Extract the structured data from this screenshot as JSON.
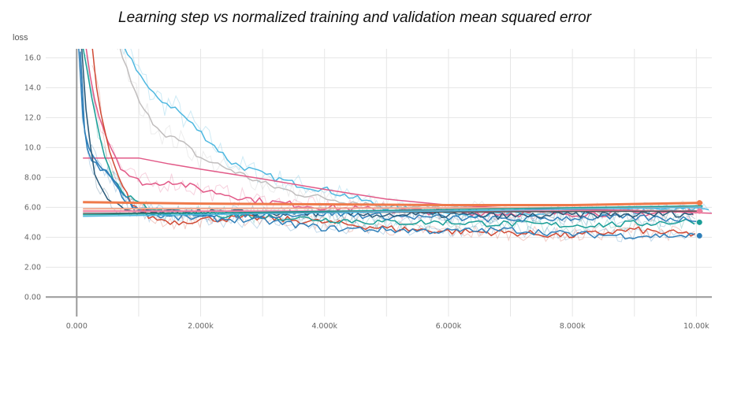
{
  "chart_data": {
    "type": "line",
    "title": "Learning step vs normalized training and validation mean squared error",
    "ylabel": "loss",
    "xlabel": "",
    "xlim": [
      -500,
      10250
    ],
    "ylim": [
      -1.3,
      16.6
    ],
    "x_ticks": [
      0,
      2000,
      4000,
      6000,
      8000,
      10000
    ],
    "x_tick_labels": [
      "0.000",
      "2.000k",
      "4.000k",
      "6.000k",
      "8.000k",
      "10.00k"
    ],
    "y_ticks": [
      0,
      2,
      4,
      6,
      8,
      10,
      12,
      14,
      16
    ],
    "y_tick_labels": [
      "0.00",
      "2.00",
      "4.00",
      "6.00",
      "8.00",
      "10.0",
      "12.0",
      "14.0",
      "16.0"
    ],
    "grid": true,
    "series": [
      {
        "color": "#4fb8e0",
        "smooth": true,
        "points": [
          [
            400,
            18
          ],
          [
            800,
            16.5
          ],
          [
            1200,
            13.6
          ],
          [
            1600,
            12.6
          ],
          [
            2000,
            11.0
          ],
          [
            2500,
            9.0
          ],
          [
            3000,
            8.2
          ],
          [
            3500,
            7.6
          ],
          [
            4000,
            7.2
          ],
          [
            5000,
            6.0
          ],
          [
            6000,
            5.6
          ],
          [
            7000,
            5.5
          ],
          [
            8000,
            5.6
          ],
          [
            9000,
            5.7
          ],
          [
            10000,
            5.9
          ],
          [
            10250,
            6.0
          ]
        ]
      },
      {
        "color": "#c0bdbd",
        "smooth": true,
        "points": [
          [
            600,
            18
          ],
          [
            900,
            14
          ],
          [
            1100,
            12.3
          ],
          [
            1400,
            11.0
          ],
          [
            1700,
            10.3
          ],
          [
            2000,
            9.3
          ],
          [
            2500,
            8.5
          ],
          [
            3000,
            7.6
          ],
          [
            3500,
            7.0
          ],
          [
            4000,
            6.6
          ],
          [
            5000,
            6.1
          ],
          [
            6000,
            5.9
          ],
          [
            7000,
            5.8
          ],
          [
            8000,
            5.7
          ],
          [
            9000,
            5.8
          ],
          [
            10000,
            5.9
          ]
        ]
      },
      {
        "color": "#e25a88",
        "smooth": false,
        "points": [
          [
            100,
            9.3
          ],
          [
            1000,
            9.3
          ],
          [
            1500,
            8.9
          ],
          [
            2000,
            8.55
          ],
          [
            3000,
            7.9
          ],
          [
            4000,
            7.2
          ],
          [
            5000,
            6.55
          ],
          [
            6000,
            6.15
          ],
          [
            7000,
            5.95
          ],
          [
            8000,
            5.85
          ],
          [
            9000,
            5.8
          ],
          [
            10250,
            5.6
          ]
        ]
      },
      {
        "color": "#e25a88",
        "smooth": true,
        "points": [
          [
            150,
            16.6
          ],
          [
            300,
            13
          ],
          [
            500,
            10.5
          ],
          [
            700,
            8.8
          ],
          [
            900,
            7.9
          ],
          [
            1200,
            7.5
          ],
          [
            1500,
            7.8
          ],
          [
            2000,
            7.2
          ],
          [
            2500,
            6.8
          ],
          [
            3000,
            6.4
          ],
          [
            4000,
            6.0
          ],
          [
            5000,
            5.8
          ],
          [
            6000,
            5.7
          ],
          [
            7000,
            5.6
          ],
          [
            8000,
            5.6
          ],
          [
            9000,
            5.6
          ],
          [
            10000,
            5.7
          ]
        ]
      },
      {
        "color": "#d04a35",
        "smooth": true,
        "points": [
          [
            250,
            16.6
          ],
          [
            350,
            13
          ],
          [
            500,
            10
          ],
          [
            700,
            7.6
          ],
          [
            900,
            6.2
          ],
          [
            1200,
            5.3
          ],
          [
            1600,
            5.0
          ],
          [
            2000,
            5.2
          ],
          [
            3000,
            5.3
          ],
          [
            4000,
            5.0
          ],
          [
            5000,
            4.6
          ],
          [
            6000,
            4.4
          ],
          [
            7000,
            4.3
          ],
          [
            8000,
            4.1
          ],
          [
            8500,
            4.3
          ],
          [
            9000,
            4.5
          ],
          [
            9500,
            4.3
          ],
          [
            10000,
            4.2
          ]
        ]
      },
      {
        "color": "#1a9e97",
        "smooth": true,
        "points": [
          [
            100,
            16.6
          ],
          [
            250,
            13
          ],
          [
            400,
            10
          ],
          [
            600,
            7.9
          ],
          [
            900,
            6.4
          ],
          [
            1200,
            5.8
          ],
          [
            1600,
            5.6
          ],
          [
            2000,
            5.6
          ],
          [
            3000,
            5.4
          ],
          [
            4000,
            5.2
          ],
          [
            5000,
            5.0
          ],
          [
            6000,
            5.0
          ],
          [
            7000,
            4.9
          ],
          [
            8000,
            4.8
          ],
          [
            9000,
            4.9
          ],
          [
            10000,
            5.1
          ]
        ]
      },
      {
        "color": "#2f7fb9",
        "smooth": true,
        "points": [
          [
            30,
            16.6
          ],
          [
            100,
            12
          ],
          [
            200,
            9.3
          ],
          [
            350,
            8.6
          ],
          [
            500,
            8.5
          ],
          [
            700,
            7.0
          ],
          [
            900,
            6.0
          ],
          [
            1200,
            5.5
          ],
          [
            1600,
            5.3
          ],
          [
            2000,
            5.3
          ],
          [
            3000,
            5.1
          ],
          [
            4000,
            4.6
          ],
          [
            5000,
            4.5
          ],
          [
            6000,
            4.4
          ],
          [
            7000,
            4.5
          ],
          [
            8000,
            4.2
          ],
          [
            9000,
            4.1
          ],
          [
            10000,
            4.1
          ]
        ]
      },
      {
        "color": "#2f7fb9",
        "smooth": true,
        "points": [
          [
            60,
            16.6
          ],
          [
            130,
            11
          ],
          [
            250,
            9.5
          ],
          [
            450,
            8.6
          ],
          [
            650,
            7.5
          ],
          [
            900,
            6.0
          ],
          [
            1300,
            5.6
          ],
          [
            2000,
            5.6
          ],
          [
            3000,
            5.5
          ],
          [
            4000,
            5.6
          ],
          [
            5000,
            5.4
          ],
          [
            6000,
            5.3
          ],
          [
            7000,
            5.2
          ],
          [
            8000,
            5.3
          ],
          [
            9000,
            5.3
          ],
          [
            10000,
            5.2
          ]
        ]
      },
      {
        "color": "#2a5a7a",
        "smooth": true,
        "points": [
          [
            80,
            16.6
          ],
          [
            180,
            11
          ],
          [
            300,
            8.0
          ],
          [
            500,
            6.4
          ],
          [
            800,
            5.8
          ],
          [
            1200,
            5.6
          ],
          [
            2000,
            5.7
          ],
          [
            3000,
            5.6
          ],
          [
            4000,
            5.6
          ],
          [
            5000,
            5.5
          ],
          [
            6000,
            5.5
          ],
          [
            7000,
            5.4
          ],
          [
            8000,
            5.5
          ],
          [
            9000,
            5.5
          ],
          [
            10000,
            5.6
          ]
        ]
      },
      {
        "color": "#ef7a4a",
        "smooth": false,
        "width": 3,
        "points": [
          [
            100,
            6.35
          ],
          [
            2000,
            6.25
          ],
          [
            4000,
            6.2
          ],
          [
            6000,
            6.15
          ],
          [
            8000,
            6.15
          ],
          [
            10100,
            6.3
          ]
        ]
      },
      {
        "color": "#f0a890",
        "smooth": false,
        "width": 2,
        "points": [
          [
            100,
            5.9
          ],
          [
            5000,
            5.95
          ],
          [
            10100,
            6.0
          ]
        ]
      },
      {
        "color": "#f07e9e",
        "smooth": false,
        "width": 2,
        "points": [
          [
            100,
            5.75
          ],
          [
            10100,
            5.75
          ]
        ]
      },
      {
        "color": "#555555",
        "smooth": false,
        "width": 1.5,
        "points": [
          [
            100,
            5.6
          ],
          [
            10100,
            5.75
          ]
        ]
      },
      {
        "color": "#4fb8e0",
        "smooth": false,
        "width": 1.5,
        "points": [
          [
            100,
            5.4
          ],
          [
            10100,
            6.0
          ]
        ]
      },
      {
        "color": "#1a9e97",
        "smooth": false,
        "width": 1.5,
        "points": [
          [
            100,
            5.5
          ],
          [
            10100,
            6.1
          ]
        ]
      }
    ],
    "end_markers": [
      {
        "x": 10050,
        "y": 6.3,
        "color": "#ef7a4a"
      },
      {
        "x": 10050,
        "y": 5.75,
        "color": "#f07e9e"
      },
      {
        "x": 10050,
        "y": 5.0,
        "color": "#1a9e97"
      },
      {
        "x": 10050,
        "y": 4.1,
        "color": "#2f7fb9"
      }
    ]
  }
}
